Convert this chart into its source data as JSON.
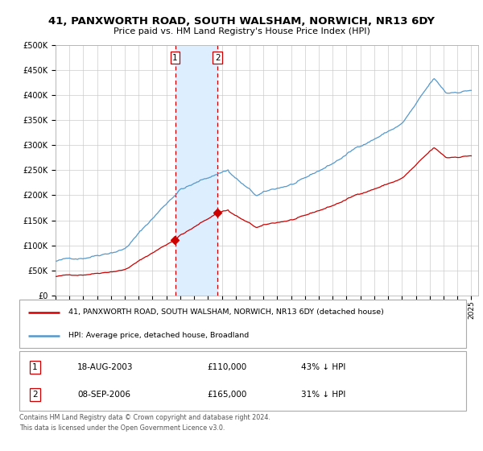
{
  "title": "41, PANXWORTH ROAD, SOUTH WALSHAM, NORWICH, NR13 6DY",
  "subtitle": "Price paid vs. HM Land Registry's House Price Index (HPI)",
  "legend_label_red": "41, PANXWORTH ROAD, SOUTH WALSHAM, NORWICH, NR13 6DY (detached house)",
  "legend_label_blue": "HPI: Average price, detached house, Broadland",
  "footer": "Contains HM Land Registry data © Crown copyright and database right 2024.\nThis data is licensed under the Open Government Licence v3.0.",
  "sale1_date": "18-AUG-2003",
  "sale1_price": 110000,
  "sale1_pct": "43%",
  "sale2_date": "08-SEP-2006",
  "sale2_price": 165000,
  "sale2_pct": "31%",
  "sale1_year": 2003.63,
  "sale2_year": 2006.7,
  "red_color": "#cc0000",
  "blue_color": "#5599cc",
  "shade_color": "#ddeeff",
  "grid_color": "#cccccc",
  "ylim": [
    0,
    500000
  ],
  "yticks": [
    0,
    50000,
    100000,
    150000,
    200000,
    250000,
    300000,
    350000,
    400000,
    450000,
    500000
  ],
  "ytick_labels": [
    "£0",
    "£50K",
    "£100K",
    "£150K",
    "£200K",
    "£250K",
    "£300K",
    "£350K",
    "£400K",
    "£450K",
    "£500K"
  ]
}
